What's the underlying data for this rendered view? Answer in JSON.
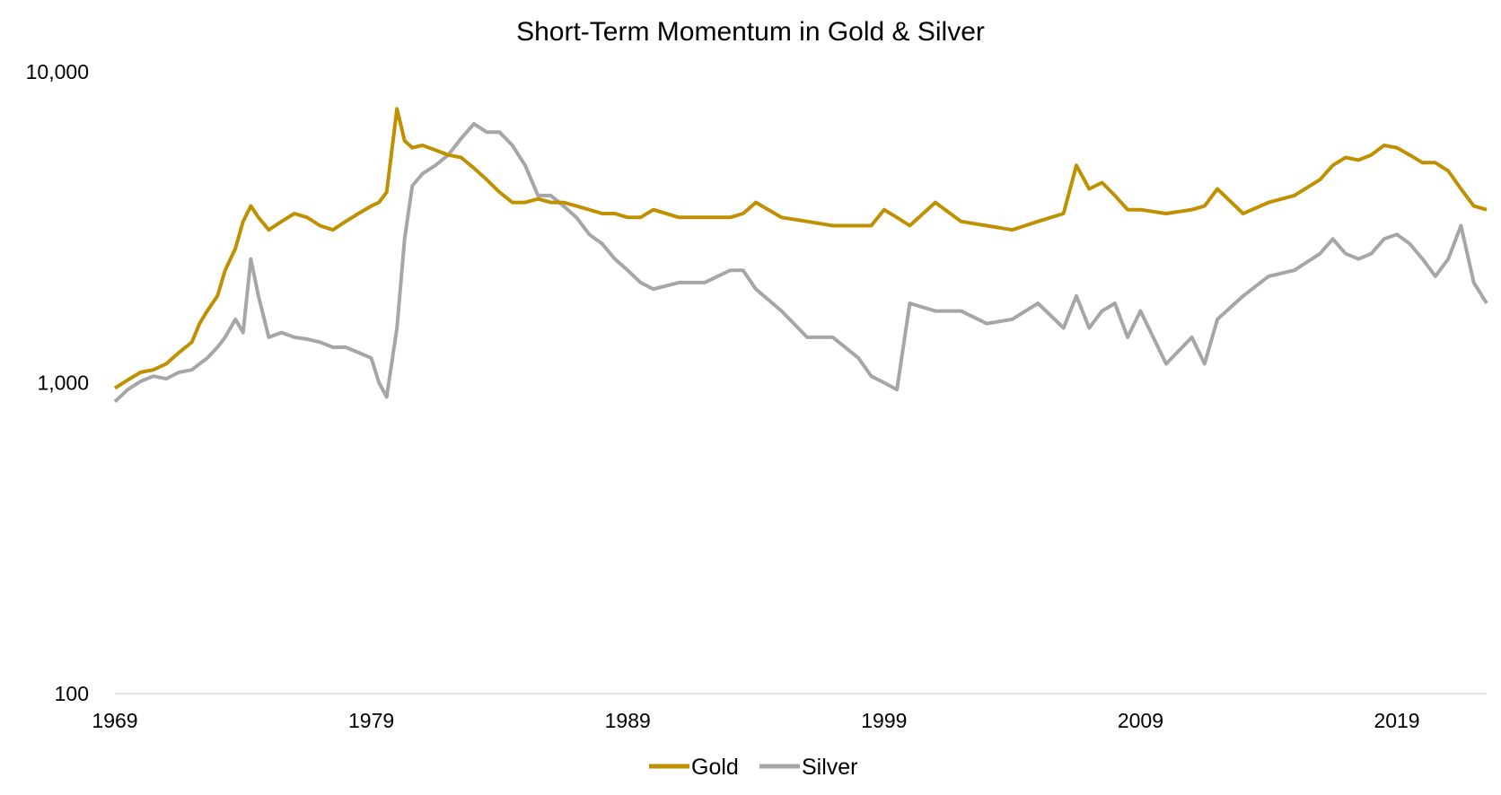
{
  "chart_data": {
    "type": "line",
    "title": "Short-Term Momentum in Gold & Silver",
    "xlabel": "",
    "ylabel": "",
    "y_scale": "log",
    "ylim": [
      100,
      10000
    ],
    "xlim": [
      1969,
      2022.5
    ],
    "y_ticks": [
      100,
      1000,
      10000
    ],
    "y_tick_labels": [
      "100",
      "1,000",
      "10,000"
    ],
    "x_ticks": [
      1969,
      1979,
      1989,
      1999,
      2009,
      2019
    ],
    "x_tick_labels": [
      "1969",
      "1979",
      "1989",
      "1999",
      "2009",
      "2019"
    ],
    "grid": false,
    "legend_position": "bottom",
    "series": [
      {
        "name": "Gold",
        "color": "#BF9000",
        "x": [
          1969.0,
          1969.5,
          1970.0,
          1970.5,
          1971.0,
          1971.5,
          1972.0,
          1972.3,
          1972.6,
          1973.0,
          1973.3,
          1973.7,
          1974.0,
          1974.3,
          1974.6,
          1975.0,
          1975.5,
          1976.0,
          1976.5,
          1977.0,
          1977.5,
          1978.0,
          1978.5,
          1979.0,
          1979.3,
          1979.6,
          1980.0,
          1980.3,
          1980.6,
          1981.0,
          1981.5,
          1982.0,
          1982.5,
          1983.0,
          1983.5,
          1984.0,
          1984.5,
          1985.0,
          1985.5,
          1986.0,
          1986.5,
          1987.0,
          1987.5,
          1988.0,
          1988.5,
          1989.0,
          1989.5,
          1990.0,
          1991.0,
          1992.0,
          1993.0,
          1993.5,
          1994.0,
          1995.0,
          1996.0,
          1997.0,
          1998.0,
          1998.5,
          1999.0,
          1999.5,
          2000.0,
          2001.0,
          2002.0,
          2003.0,
          2004.0,
          2005.0,
          2006.0,
          2006.5,
          2007.0,
          2007.5,
          2008.0,
          2008.5,
          2009.0,
          2010.0,
          2011.0,
          2011.5,
          2012.0,
          2013.0,
          2014.0,
          2015.0,
          2016.0,
          2016.5,
          2017.0,
          2017.5,
          2018.0,
          2018.5,
          2019.0,
          2019.5,
          2020.0,
          2020.5,
          2021.0,
          2021.5,
          2022.0,
          2022.5
        ],
        "values": [
          960,
          1020,
          1080,
          1100,
          1150,
          1250,
          1350,
          1550,
          1700,
          1900,
          2300,
          2700,
          3300,
          3700,
          3400,
          3100,
          3300,
          3500,
          3400,
          3200,
          3100,
          3300,
          3500,
          3700,
          3800,
          4100,
          7600,
          6000,
          5700,
          5800,
          5600,
          5400,
          5300,
          4900,
          4500,
          4100,
          3800,
          3800,
          3900,
          3800,
          3800,
          3700,
          3600,
          3500,
          3500,
          3400,
          3400,
          3600,
          3400,
          3400,
          3400,
          3500,
          3800,
          3400,
          3300,
          3200,
          3200,
          3200,
          3600,
          3400,
          3200,
          3800,
          3300,
          3200,
          3100,
          3300,
          3500,
          5000,
          4200,
          4400,
          4000,
          3600,
          3600,
          3500,
          3600,
          3700,
          4200,
          3500,
          3800,
          4000,
          4500,
          5000,
          5300,
          5200,
          5400,
          5800,
          5700,
          5400,
          5100,
          5100,
          4800,
          4200,
          3700,
          3600
        ]
      },
      {
        "name": "Silver",
        "color": "#A6A6A6",
        "x": [
          1969.0,
          1969.5,
          1970.0,
          1970.5,
          1971.0,
          1971.5,
          1972.0,
          1972.3,
          1972.6,
          1973.0,
          1973.3,
          1973.7,
          1974.0,
          1974.3,
          1974.6,
          1975.0,
          1975.5,
          1976.0,
          1976.5,
          1977.0,
          1977.5,
          1978.0,
          1978.5,
          1979.0,
          1979.3,
          1979.6,
          1980.0,
          1980.3,
          1980.6,
          1981.0,
          1981.5,
          1982.0,
          1982.5,
          1983.0,
          1983.5,
          1984.0,
          1984.5,
          1985.0,
          1985.5,
          1986.0,
          1986.5,
          1987.0,
          1987.5,
          1988.0,
          1988.5,
          1989.0,
          1989.5,
          1990.0,
          1991.0,
          1992.0,
          1993.0,
          1993.5,
          1994.0,
          1995.0,
          1996.0,
          1997.0,
          1998.0,
          1998.5,
          1999.0,
          1999.5,
          2000.0,
          2001.0,
          2002.0,
          2003.0,
          2004.0,
          2005.0,
          2006.0,
          2006.5,
          2007.0,
          2007.5,
          2008.0,
          2008.5,
          2009.0,
          2010.0,
          2011.0,
          2011.5,
          2012.0,
          2013.0,
          2014.0,
          2015.0,
          2016.0,
          2016.5,
          2017.0,
          2017.5,
          2018.0,
          2018.5,
          2019.0,
          2019.5,
          2020.0,
          2020.5,
          2021.0,
          2021.5,
          2022.0,
          2022.5
        ],
        "values": [
          870,
          950,
          1010,
          1050,
          1030,
          1080,
          1100,
          1150,
          1200,
          1300,
          1400,
          1600,
          1450,
          2500,
          1900,
          1400,
          1450,
          1400,
          1380,
          1350,
          1300,
          1300,
          1250,
          1200,
          1000,
          900,
          1500,
          2900,
          4300,
          4700,
          5000,
          5400,
          6100,
          6800,
          6400,
          6400,
          5800,
          5000,
          4000,
          4000,
          3700,
          3400,
          3000,
          2800,
          2500,
          2300,
          2100,
          2000,
          2100,
          2100,
          2300,
          2300,
          2000,
          1700,
          1400,
          1400,
          1200,
          1050,
          1000,
          950,
          1800,
          1700,
          1700,
          1550,
          1600,
          1800,
          1500,
          1900,
          1500,
          1700,
          1800,
          1400,
          1700,
          1150,
          1400,
          1150,
          1600,
          1900,
          2200,
          2300,
          2600,
          2900,
          2600,
          2500,
          2600,
          2900,
          3000,
          2800,
          2500,
          2200,
          2500,
          3200,
          2100,
          1800
        ]
      }
    ]
  }
}
